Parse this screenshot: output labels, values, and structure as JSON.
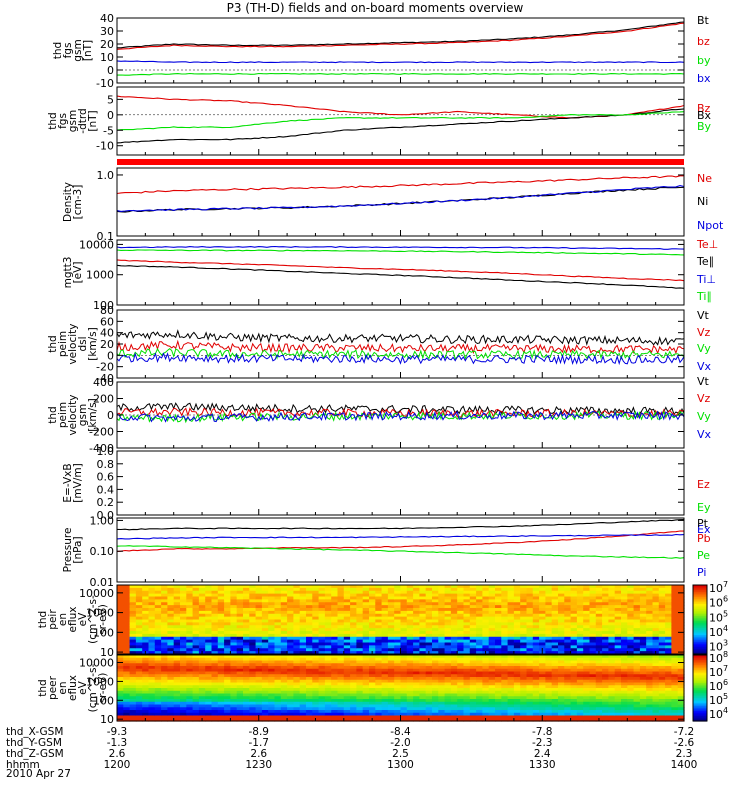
{
  "title": "P3 (TH-D) fields and on-board moments overview",
  "colors": {
    "black": "#000000",
    "red": "#e00000",
    "green": "#00e000",
    "blue": "#0000e0",
    "separator": "#ff0000"
  },
  "chart_data": [
    {
      "type": "line",
      "panel": "fgs_gsm",
      "ylabel": [
        "thd",
        "fgs",
        "gsm",
        "[nT]"
      ],
      "ylim": [
        -10,
        40
      ],
      "yticks": [
        {
          "v": 40,
          "t": "40"
        },
        {
          "v": 30,
          "t": "30"
        },
        {
          "v": 20,
          "t": "20"
        },
        {
          "v": 10,
          "t": "10"
        },
        {
          "v": 0,
          "t": "0"
        },
        {
          "v": -10,
          "t": "-10"
        }
      ],
      "x": [
        0,
        0.1,
        0.2,
        0.3,
        0.4,
        0.5,
        0.6,
        0.7,
        0.8,
        0.9,
        1
      ],
      "series": [
        {
          "name": "Bt",
          "color": "black",
          "values": [
            17,
            20,
            19,
            19,
            20,
            21,
            22,
            24,
            27,
            31,
            37
          ]
        },
        {
          "name": "bz",
          "color": "red",
          "values": [
            16,
            19,
            18,
            18,
            19,
            20,
            21,
            23,
            26,
            30,
            36
          ]
        },
        {
          "name": "by",
          "color": "green",
          "values": [
            -4,
            -3,
            -3,
            -3,
            -3,
            -3,
            -3,
            -3,
            -3,
            -3,
            -3
          ]
        },
        {
          "name": "bx",
          "color": "blue",
          "values": [
            7,
            6,
            6,
            6,
            6,
            6,
            6,
            6,
            6,
            6,
            6
          ]
        }
      ]
    },
    {
      "type": "line",
      "panel": "fgs_gsm_dtrd",
      "ylabel": [
        "thd",
        "fgs",
        "gsm",
        "-dtrd",
        "[nT]"
      ],
      "ylim": [
        -13,
        9
      ],
      "yticks": [
        {
          "v": 5,
          "t": "5"
        },
        {
          "v": 0,
          "t": "0"
        },
        {
          "v": -5,
          "t": "-5"
        },
        {
          "v": -10,
          "t": "-10"
        }
      ],
      "x": [
        0,
        0.1,
        0.2,
        0.3,
        0.4,
        0.5,
        0.6,
        0.7,
        0.8,
        0.9,
        1
      ],
      "series": [
        {
          "name": "Bz",
          "color": "red",
          "values": [
            6,
            5,
            4.5,
            3,
            1,
            0,
            1,
            0,
            -1,
            0,
            3
          ]
        },
        {
          "name": "Bx",
          "color": "black",
          "values": [
            -9,
            -8,
            -8,
            -7,
            -5,
            -4,
            -3,
            -2,
            -1,
            0,
            2
          ]
        },
        {
          "name": "By",
          "color": "green",
          "values": [
            -5,
            -4,
            -4,
            -2,
            -1,
            -1,
            -1,
            -1,
            0,
            0,
            1
          ]
        }
      ]
    },
    {
      "type": "line",
      "panel": "density",
      "ylabel": [
        "Density",
        "[cm-3]"
      ],
      "log": true,
      "ylim": [
        0.1,
        1.3
      ],
      "yticks": [
        {
          "v": 1,
          "t": "1.0"
        },
        {
          "v": 0.1,
          "t": "0.1"
        }
      ],
      "x": [
        0,
        0.1,
        0.2,
        0.3,
        0.4,
        0.5,
        0.6,
        0.7,
        0.8,
        0.9,
        1
      ],
      "series": [
        {
          "name": "Ne",
          "color": "red",
          "values": [
            0.5,
            0.55,
            0.58,
            0.6,
            0.63,
            0.67,
            0.72,
            0.77,
            0.83,
            0.9,
            0.95
          ]
        },
        {
          "name": "Ni",
          "color": "black",
          "values": [
            0.25,
            0.27,
            0.28,
            0.29,
            0.31,
            0.34,
            0.38,
            0.43,
            0.5,
            0.57,
            0.63
          ]
        },
        {
          "name": "Npot",
          "color": "blue",
          "values": [
            0.26,
            0.27,
            0.28,
            0.29,
            0.31,
            0.34,
            0.38,
            0.43,
            0.5,
            0.58,
            0.66
          ]
        }
      ]
    },
    {
      "type": "line",
      "panel": "temperature",
      "ylabel": [
        "mgtt3",
        "[eV]"
      ],
      "log": true,
      "ylim": [
        100,
        14000
      ],
      "yticks": [
        {
          "v": 10000,
          "t": "10000"
        },
        {
          "v": 1000,
          "t": "1000"
        },
        {
          "v": 100,
          "t": "100"
        }
      ],
      "x": [
        0,
        0.1,
        0.2,
        0.3,
        0.4,
        0.5,
        0.6,
        0.7,
        0.8,
        0.9,
        1
      ],
      "series": [
        {
          "name": "Te⊥",
          "color": "red",
          "values": [
            3000,
            2600,
            2300,
            2000,
            1700,
            1500,
            1300,
            1100,
            900,
            750,
            650
          ]
        },
        {
          "name": "Te∥",
          "color": "black",
          "values": [
            2000,
            1800,
            1550,
            1300,
            1100,
            950,
            800,
            650,
            550,
            450,
            350
          ]
        },
        {
          "name": "Ti⊥",
          "color": "blue",
          "values": [
            8000,
            8200,
            8300,
            8300,
            8200,
            8100,
            8000,
            7900,
            7600,
            7300,
            7000
          ]
        },
        {
          "name": "Ti∥",
          "color": "green",
          "values": [
            6500,
            6400,
            6300,
            6300,
            6200,
            6000,
            5800,
            5500,
            5200,
            4900,
            4500
          ]
        }
      ]
    },
    {
      "type": "line",
      "panel": "peim_velocity_dsl",
      "ylabel": [
        "thd",
        "peim",
        "velocity",
        "dsl",
        "[km/s]"
      ],
      "ylim": [
        -40,
        80
      ],
      "yticks": [
        {
          "v": 80,
          "t": "80"
        },
        {
          "v": 60,
          "t": "60"
        },
        {
          "v": 40,
          "t": "40"
        },
        {
          "v": 20,
          "t": "20"
        },
        {
          "v": 0,
          "t": "0"
        },
        {
          "v": -20,
          "t": "-20"
        },
        {
          "v": -40,
          "t": "-40"
        }
      ],
      "x": [
        0,
        0.1,
        0.2,
        0.3,
        0.4,
        0.5,
        0.6,
        0.7,
        0.8,
        0.9,
        1
      ],
      "noisy": true,
      "series": [
        {
          "name": "Vt",
          "color": "black",
          "values": [
            35,
            38,
            32,
            30,
            30,
            30,
            28,
            28,
            27,
            26,
            25
          ]
        },
        {
          "name": "Vz",
          "color": "red",
          "values": [
            15,
            18,
            14,
            13,
            13,
            12,
            12,
            12,
            11,
            11,
            10
          ]
        },
        {
          "name": "Vy",
          "color": "green",
          "values": [
            3,
            5,
            2,
            2,
            2,
            1,
            1,
            1,
            1,
            1,
            1
          ]
        },
        {
          "name": "Vx",
          "color": "blue",
          "values": [
            -5,
            -3,
            -6,
            -6,
            -6,
            -7,
            -7,
            -7,
            -7,
            -8,
            -8
          ]
        }
      ]
    },
    {
      "type": "line",
      "panel": "peim_velocity_gsm",
      "ylabel": [
        "thd",
        "peim",
        "velocity",
        "gsm",
        "[km/s]"
      ],
      "ylim": [
        -400,
        400
      ],
      "yticks": [
        {
          "v": 400,
          "t": "400"
        },
        {
          "v": 200,
          "t": "200"
        },
        {
          "v": 0,
          "t": "0"
        },
        {
          "v": -200,
          "t": "-200"
        },
        {
          "v": -400,
          "t": "-400"
        }
      ],
      "x": [
        0,
        0.1,
        0.2,
        0.3,
        0.4,
        0.5,
        0.6,
        0.7,
        0.8,
        0.9,
        1
      ],
      "noisy": true,
      "series": [
        {
          "name": "Vt",
          "color": "black",
          "values": [
            90,
            100,
            90,
            80,
            75,
            70,
            65,
            60,
            55,
            50,
            45
          ]
        },
        {
          "name": "Vz",
          "color": "red",
          "values": [
            30,
            35,
            30,
            25,
            25,
            20,
            20,
            20,
            18,
            15,
            15
          ]
        },
        {
          "name": "Vy",
          "color": "green",
          "values": [
            -30,
            -40,
            -25,
            -20,
            -15,
            -10,
            -10,
            -8,
            -5,
            -5,
            -5
          ]
        },
        {
          "name": "Vx",
          "color": "blue",
          "values": [
            -20,
            -40,
            -30,
            -20,
            -15,
            -12,
            -10,
            -8,
            -6,
            -5,
            -5
          ]
        }
      ]
    },
    {
      "type": "line",
      "panel": "exb",
      "ylabel": [
        "E=-VxB",
        "[mV/m]"
      ],
      "ylim": [
        0,
        1
      ],
      "yticks": [
        {
          "v": 1,
          "t": "1.0"
        },
        {
          "v": 0.8,
          "t": "0.8"
        },
        {
          "v": 0.6,
          "t": "0.6"
        },
        {
          "v": 0.4,
          "t": "0.4"
        },
        {
          "v": 0.2,
          "t": "0.2"
        },
        {
          "v": 0,
          "t": "0.0"
        }
      ],
      "x": [],
      "series": [
        {
          "name": "Ez",
          "color": "red",
          "values": []
        },
        {
          "name": "Ey",
          "color": "green",
          "values": []
        },
        {
          "name": "Ex",
          "color": "blue",
          "values": []
        }
      ]
    },
    {
      "type": "line",
      "panel": "pressure",
      "ylabel": [
        "Pressure",
        "[nPa]"
      ],
      "log": true,
      "ylim": [
        0.01,
        1.2
      ],
      "yticks": [
        {
          "v": 1,
          "t": "1.00"
        },
        {
          "v": 0.1,
          "t": "0.10"
        },
        {
          "v": 0.01,
          "t": "0.01"
        }
      ],
      "x": [
        0,
        0.1,
        0.2,
        0.3,
        0.4,
        0.5,
        0.6,
        0.7,
        0.8,
        0.9,
        1
      ],
      "series": [
        {
          "name": "Pt",
          "color": "black",
          "values": [
            0.5,
            0.55,
            0.55,
            0.55,
            0.55,
            0.55,
            0.6,
            0.65,
            0.75,
            0.9,
            1.05
          ]
        },
        {
          "name": "Pb",
          "color": "red",
          "values": [
            0.1,
            0.12,
            0.12,
            0.13,
            0.13,
            0.14,
            0.16,
            0.19,
            0.24,
            0.32,
            0.45
          ]
        },
        {
          "name": "Pe",
          "color": "green",
          "values": [
            0.15,
            0.14,
            0.13,
            0.12,
            0.11,
            0.1,
            0.09,
            0.08,
            0.07,
            0.065,
            0.06
          ]
        },
        {
          "name": "Pi",
          "color": "blue",
          "values": [
            0.25,
            0.27,
            0.28,
            0.28,
            0.28,
            0.29,
            0.3,
            0.31,
            0.32,
            0.33,
            0.34
          ]
        }
      ]
    },
    {
      "type": "heatmap",
      "panel": "peir_en_eflux",
      "ylabel": [
        "thd",
        "peir",
        "en",
        "eflux",
        "eV",
        "(cm^2-s-",
        "sr-eV)"
      ],
      "log": true,
      "ylim": [
        8,
        25000
      ],
      "yticks": [
        {
          "v": 10000,
          "t": "10000"
        },
        {
          "v": 1000,
          "t": "1000"
        },
        {
          "v": 100,
          "t": "100"
        },
        {
          "v": 10,
          "t": "10"
        }
      ],
      "colorbar": {
        "ticks": [
          {
            "exp": 7,
            "t": "10",
            "sup": "7"
          },
          {
            "exp": 6,
            "t": "10",
            "sup": "6"
          },
          {
            "exp": 5,
            "t": "10",
            "sup": "5"
          },
          {
            "exp": 4,
            "t": "10",
            "sup": "4"
          },
          {
            "exp": 3,
            "t": "10",
            "sup": "3"
          }
        ],
        "min_exp": 2.5,
        "max_exp": 7.2
      }
    },
    {
      "type": "heatmap",
      "panel": "peer_en_eflux",
      "ylabel": [
        "thd",
        "peer",
        "en",
        "eflux",
        "eV",
        "(cm^2-s-",
        "sr-eV)"
      ],
      "log": true,
      "ylim": [
        8,
        25000
      ],
      "yticks": [
        {
          "v": 10000,
          "t": "10000"
        },
        {
          "v": 1000,
          "t": "1000"
        },
        {
          "v": 100,
          "t": "100"
        },
        {
          "v": 10,
          "t": "10"
        }
      ],
      "colorbar": {
        "ticks": [
          {
            "exp": 8,
            "t": "10",
            "sup": "8"
          },
          {
            "exp": 7,
            "t": "10",
            "sup": "7"
          },
          {
            "exp": 6,
            "t": "10",
            "sup": "6"
          },
          {
            "exp": 5,
            "t": "10",
            "sup": "5"
          },
          {
            "exp": 4,
            "t": "10",
            "sup": "4"
          }
        ],
        "min_exp": 3.5,
        "max_exp": 8.2
      }
    }
  ],
  "x_axis": {
    "row_labels": [
      "thd_X-GSM",
      "thd_Y-GSM",
      "thd_Z-GSM",
      "hhmm",
      "2010 Apr 27"
    ],
    "columns": [
      {
        "x": 0.0,
        "vals": [
          "-9.3",
          "-1.3",
          "2.6",
          "1200"
        ]
      },
      {
        "x": 0.25,
        "vals": [
          "-8.9",
          "-1.7",
          "2.6",
          "1230"
        ]
      },
      {
        "x": 0.5,
        "vals": [
          "-8.4",
          "-2.0",
          "2.5",
          "1300"
        ]
      },
      {
        "x": 0.75,
        "vals": [
          "-7.8",
          "-2.3",
          "2.4",
          "1330"
        ]
      },
      {
        "x": 1.0,
        "vals": [
          "-7.2",
          "-2.6",
          "2.3",
          "1400"
        ]
      }
    ]
  }
}
